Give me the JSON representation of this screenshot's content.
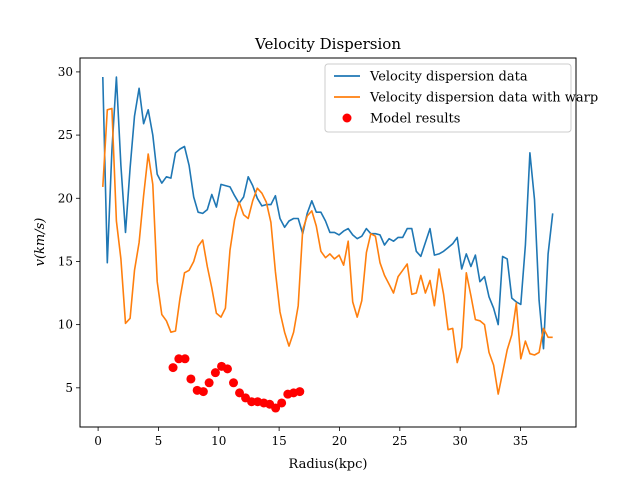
{
  "chart_data": {
    "type": "line",
    "title": "Velocity Dispersion",
    "xlabel": "Radius(kpc)",
    "ylabel": "v(km/s)",
    "xlim": [
      -1.5,
      39.6
    ],
    "ylim": [
      1.9,
      31.1
    ],
    "xticks": [
      0,
      5,
      10,
      15,
      20,
      25,
      30,
      35
    ],
    "yticks": [
      5,
      10,
      15,
      20,
      25,
      30
    ],
    "xtick_labels": [
      "0",
      "5",
      "10",
      "15",
      "20",
      "25",
      "30",
      "35"
    ],
    "ytick_labels": [
      "5",
      "10",
      "15",
      "20",
      "25",
      "30"
    ],
    "legend_position": "upper right",
    "grid": false,
    "series": [
      {
        "name": "Velocity dispersion data",
        "kind": "line",
        "color": "#1f77b4",
        "x": [
          0.39,
          0.76,
          1.14,
          1.52,
          1.89,
          2.27,
          2.65,
          3.02,
          3.4,
          3.77,
          4.15,
          4.53,
          4.9,
          5.28,
          5.66,
          6.03,
          6.41,
          6.79,
          7.16,
          7.54,
          7.92,
          8.29,
          8.67,
          9.05,
          9.42,
          9.8,
          10.18,
          10.55,
          10.93,
          11.31,
          11.68,
          12.06,
          12.44,
          12.81,
          13.19,
          13.57,
          13.94,
          14.32,
          14.69,
          15.07,
          15.45,
          15.82,
          16.2,
          16.58,
          16.95,
          17.33,
          17.71,
          18.08,
          18.46,
          18.84,
          19.21,
          19.59,
          19.97,
          20.34,
          20.72,
          21.1,
          21.47,
          21.85,
          22.23,
          22.6,
          22.98,
          23.36,
          23.73,
          24.11,
          24.48,
          24.86,
          25.24,
          25.61,
          25.99,
          26.37,
          26.74,
          27.12,
          27.5,
          27.87,
          28.25,
          28.63,
          29.0,
          29.38,
          29.76,
          30.13,
          30.51,
          30.89,
          31.26,
          31.64,
          32.02,
          32.39,
          32.77,
          33.15,
          33.52,
          33.9,
          34.28,
          34.65,
          35.03,
          35.41,
          35.78,
          36.16,
          36.54,
          36.91,
          37.29,
          37.67
        ],
        "y": [
          29.6,
          14.9,
          23.8,
          29.6,
          22.6,
          17.3,
          22.4,
          26.5,
          28.7,
          25.9,
          27.0,
          25.0,
          21.9,
          21.2,
          21.7,
          21.6,
          23.6,
          23.9,
          24.1,
          22.6,
          20.1,
          18.9,
          18.8,
          19.1,
          20.3,
          19.3,
          21.1,
          21.0,
          20.9,
          20.2,
          19.6,
          20.1,
          21.7,
          21.0,
          20.0,
          19.4,
          19.5,
          19.5,
          20.2,
          18.4,
          17.7,
          18.2,
          18.4,
          18.4,
          17.2,
          18.8,
          19.8,
          18.9,
          18.9,
          18.2,
          17.3,
          17.3,
          17.1,
          17.4,
          17.6,
          17.1,
          16.8,
          17.0,
          17.6,
          17.2,
          17.2,
          17.1,
          16.3,
          16.8,
          16.6,
          16.9,
          16.9,
          17.6,
          17.6,
          15.8,
          15.4,
          16.5,
          17.6,
          15.5,
          15.6,
          15.8,
          16.1,
          16.4,
          16.9,
          14.4,
          15.6,
          14.6,
          15.5,
          13.4,
          13.8,
          12.2,
          11.3,
          10.0,
          15.4,
          15.2,
          12.1,
          11.8,
          11.6,
          16.3,
          23.6,
          19.9,
          11.9,
          8.1,
          15.6,
          18.8
        ]
      },
      {
        "name": "Velocity dispersion data with warp",
        "kind": "line",
        "color": "#ff7f0e",
        "x": [
          0.39,
          0.76,
          1.14,
          1.52,
          1.89,
          2.27,
          2.65,
          3.02,
          3.4,
          3.77,
          4.15,
          4.53,
          4.9,
          5.28,
          5.66,
          6.03,
          6.41,
          6.79,
          7.16,
          7.54,
          7.92,
          8.29,
          8.67,
          9.05,
          9.42,
          9.8,
          10.18,
          10.55,
          10.93,
          11.31,
          11.68,
          12.06,
          12.44,
          12.81,
          13.19,
          13.57,
          13.94,
          14.32,
          14.69,
          15.07,
          15.45,
          15.82,
          16.2,
          16.58,
          16.95,
          17.33,
          17.71,
          18.08,
          18.46,
          18.84,
          19.21,
          19.59,
          19.97,
          20.34,
          20.72,
          21.1,
          21.47,
          21.85,
          22.23,
          22.6,
          22.98,
          23.36,
          23.73,
          24.11,
          24.48,
          24.86,
          25.24,
          25.61,
          25.99,
          26.37,
          26.74,
          27.12,
          27.5,
          27.87,
          28.25,
          28.63,
          29.0,
          29.38,
          29.76,
          30.13,
          30.51,
          30.89,
          31.26,
          31.64,
          32.02,
          32.39,
          32.77,
          33.15,
          33.52,
          33.9,
          34.28,
          34.65,
          35.03,
          35.41,
          35.78,
          36.16,
          36.54,
          36.91,
          37.29,
          37.67
        ],
        "y": [
          20.9,
          27.0,
          27.1,
          18.2,
          15.2,
          10.1,
          10.5,
          14.3,
          16.5,
          20.2,
          23.5,
          21.1,
          13.4,
          10.8,
          10.3,
          9.4,
          9.5,
          12.1,
          14.1,
          14.3,
          15.0,
          16.2,
          16.7,
          14.6,
          12.9,
          10.9,
          10.6,
          11.3,
          15.9,
          18.3,
          19.7,
          18.7,
          18.4,
          19.8,
          20.8,
          20.4,
          19.7,
          18.1,
          14.2,
          11.0,
          9.4,
          8.3,
          9.4,
          11.5,
          17.5,
          18.6,
          19.0,
          17.8,
          15.8,
          15.3,
          15.6,
          15.2,
          15.5,
          14.7,
          16.6,
          11.8,
          10.6,
          11.9,
          15.7,
          17.2,
          17.0,
          14.9,
          13.9,
          13.2,
          12.5,
          13.8,
          14.3,
          14.8,
          12.4,
          12.5,
          13.9,
          12.5,
          13.5,
          11.5,
          14.4,
          12.4,
          9.6,
          9.7,
          7.0,
          8.2,
          14.1,
          12.3,
          10.4,
          10.3,
          10.0,
          7.8,
          6.8,
          4.5,
          6.2,
          8.0,
          9.2,
          11.7,
          7.3,
          8.7,
          7.7,
          7.6,
          7.8,
          9.7,
          9.0,
          9.0
        ]
      },
      {
        "name": "Model results",
        "kind": "scatter",
        "color": "#ff0000",
        "x": [
          6.21,
          6.69,
          7.2,
          7.69,
          8.21,
          8.72,
          9.2,
          9.72,
          10.23,
          10.72,
          11.22,
          11.72,
          12.22,
          12.72,
          13.22,
          13.73,
          14.22,
          14.71,
          15.21,
          15.72,
          16.2,
          16.71
        ],
        "y": [
          6.6,
          7.3,
          7.3,
          5.7,
          4.8,
          4.7,
          5.4,
          6.2,
          6.7,
          6.5,
          5.4,
          4.6,
          4.2,
          3.9,
          3.9,
          3.8,
          3.7,
          3.4,
          3.8,
          4.5,
          4.6,
          4.7
        ]
      }
    ]
  }
}
